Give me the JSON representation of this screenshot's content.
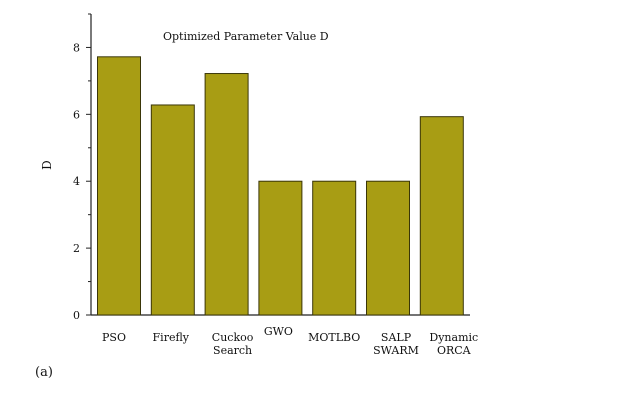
{
  "chart_data": {
    "type": "bar",
    "title": "Optimized Parameter Value D",
    "xlabel": "",
    "ylabel": "D",
    "categories": [
      [
        "PSO"
      ],
      [
        "Firefly"
      ],
      [
        "Cuckoo",
        "Search"
      ],
      [
        "GWO"
      ],
      [
        "MOTLBO"
      ],
      [
        "SALP",
        "SWARM"
      ],
      [
        "Dynamic",
        "ORCA"
      ]
    ],
    "values": [
      7.72,
      6.28,
      7.22,
      4.0,
      4.0,
      4.0,
      5.93
    ],
    "ylim": [
      0,
      9
    ],
    "yticks": [
      0,
      2,
      4,
      6,
      8
    ],
    "ytick_labels": [
      "0",
      "2",
      "4",
      "6",
      "8"
    ],
    "grid": false,
    "legend": "none",
    "colors": {
      "bar_fill": "#a89d14",
      "bar_stroke": "#3a3608",
      "axis": "#222222"
    }
  },
  "panel_label": "(a)"
}
